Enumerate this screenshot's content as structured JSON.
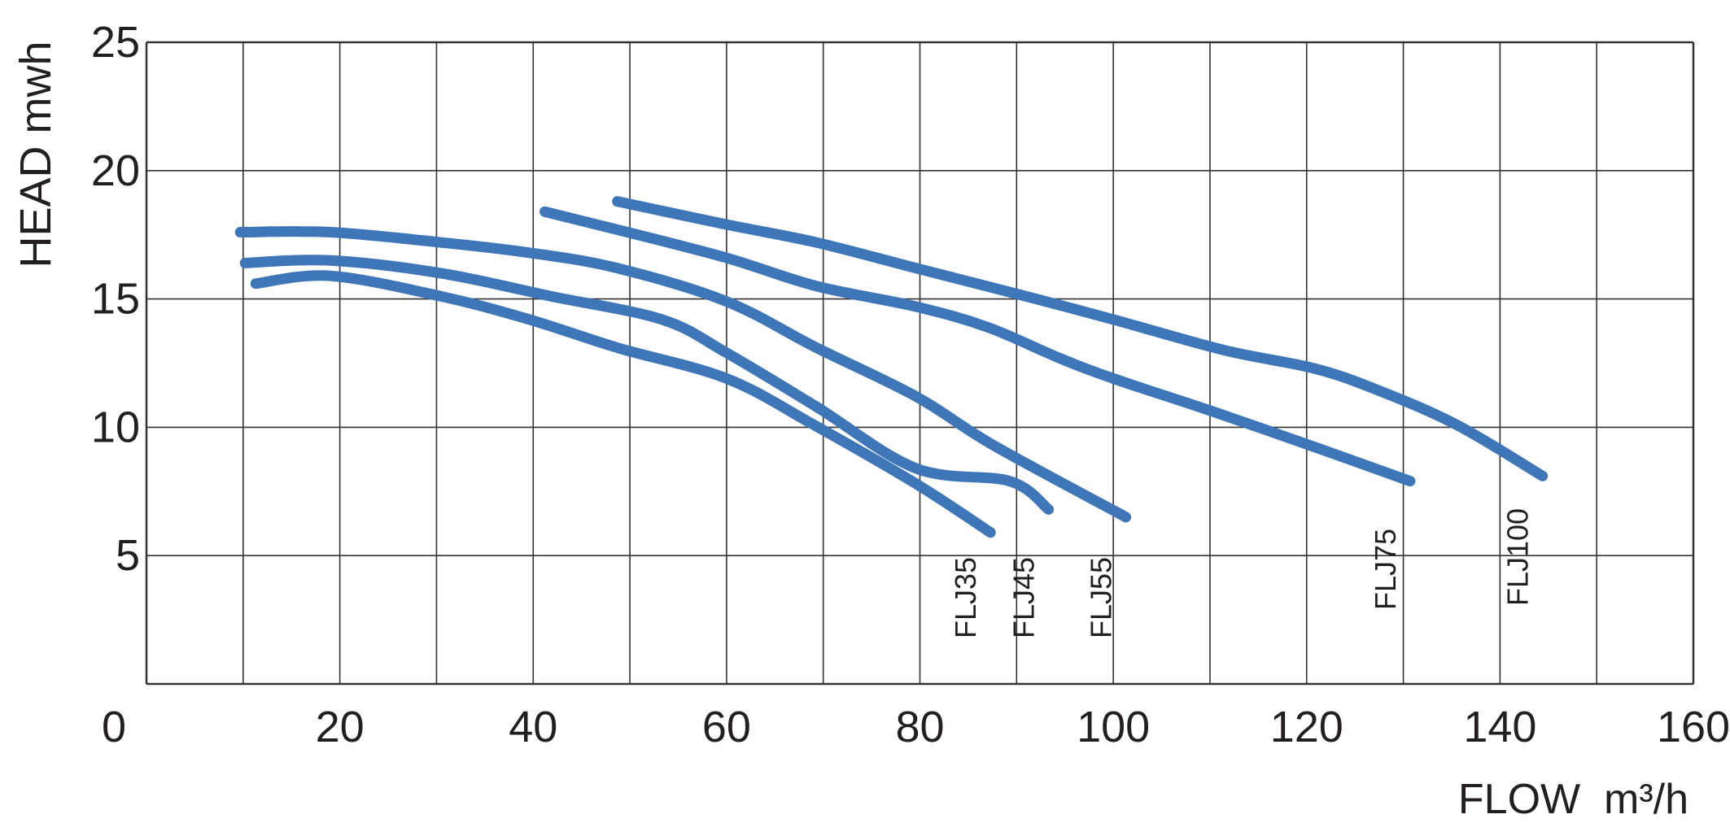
{
  "chart_data": {
    "type": "line",
    "title": "",
    "xlabel": "FLOW  m³/h",
    "ylabel": "HEAD mwh",
    "xlim": [
      0,
      160
    ],
    "ylim": [
      0,
      25
    ],
    "x_ticks": [
      "0",
      "20",
      "40",
      "60",
      "80",
      "100",
      "120",
      "140",
      "160"
    ],
    "y_ticks": [
      "5",
      "10",
      "15",
      "20",
      "25"
    ],
    "grid": true,
    "line_color": "#3f76b8",
    "series": [
      {
        "name": "FLJ35",
        "points": [
          [
            11.3,
            15.6
          ],
          [
            19,
            15.9
          ],
          [
            30.5,
            15.1
          ],
          [
            39.6,
            14.2
          ],
          [
            48.7,
            13.1
          ],
          [
            60,
            11.9
          ],
          [
            69,
            10.1
          ],
          [
            79.6,
            7.8
          ],
          [
            87.3,
            5.9
          ]
        ]
      },
      {
        "name": "FLJ45",
        "points": [
          [
            10.2,
            16.4
          ],
          [
            19,
            16.5
          ],
          [
            30.5,
            16.0
          ],
          [
            41.9,
            15.1
          ],
          [
            53.3,
            14.2
          ],
          [
            60,
            12.9
          ],
          [
            69.3,
            10.8
          ],
          [
            79.6,
            8.4
          ],
          [
            89.3,
            7.9
          ],
          [
            93.3,
            6.8
          ]
        ]
      },
      {
        "name": "FLJ55",
        "points": [
          [
            9.7,
            17.6
          ],
          [
            19,
            17.6
          ],
          [
            30.5,
            17.2
          ],
          [
            39.6,
            16.8
          ],
          [
            48.7,
            16.2
          ],
          [
            60,
            14.9
          ],
          [
            69.3,
            13.1
          ],
          [
            79.6,
            11.2
          ],
          [
            87.6,
            9.3
          ],
          [
            101.3,
            6.5
          ]
        ]
      },
      {
        "name": "FLJ75",
        "points": [
          [
            41.2,
            18.4
          ],
          [
            48.7,
            17.7
          ],
          [
            60,
            16.6
          ],
          [
            69.3,
            15.5
          ],
          [
            79.6,
            14.7
          ],
          [
            87,
            13.9
          ],
          [
            94.4,
            12.7
          ],
          [
            100,
            11.9
          ],
          [
            110.4,
            10.6
          ],
          [
            121.8,
            9.1
          ],
          [
            130.7,
            7.9
          ]
        ]
      },
      {
        "name": "FLJ100",
        "points": [
          [
            48.7,
            18.8
          ],
          [
            60,
            17.9
          ],
          [
            69.3,
            17.2
          ],
          [
            79.6,
            16.2
          ],
          [
            91,
            15.1
          ],
          [
            100,
            14.2
          ],
          [
            111.5,
            13.0
          ],
          [
            120.7,
            12.3
          ],
          [
            127,
            11.5
          ],
          [
            135.5,
            10.1
          ],
          [
            144.4,
            8.1
          ]
        ]
      }
    ]
  }
}
